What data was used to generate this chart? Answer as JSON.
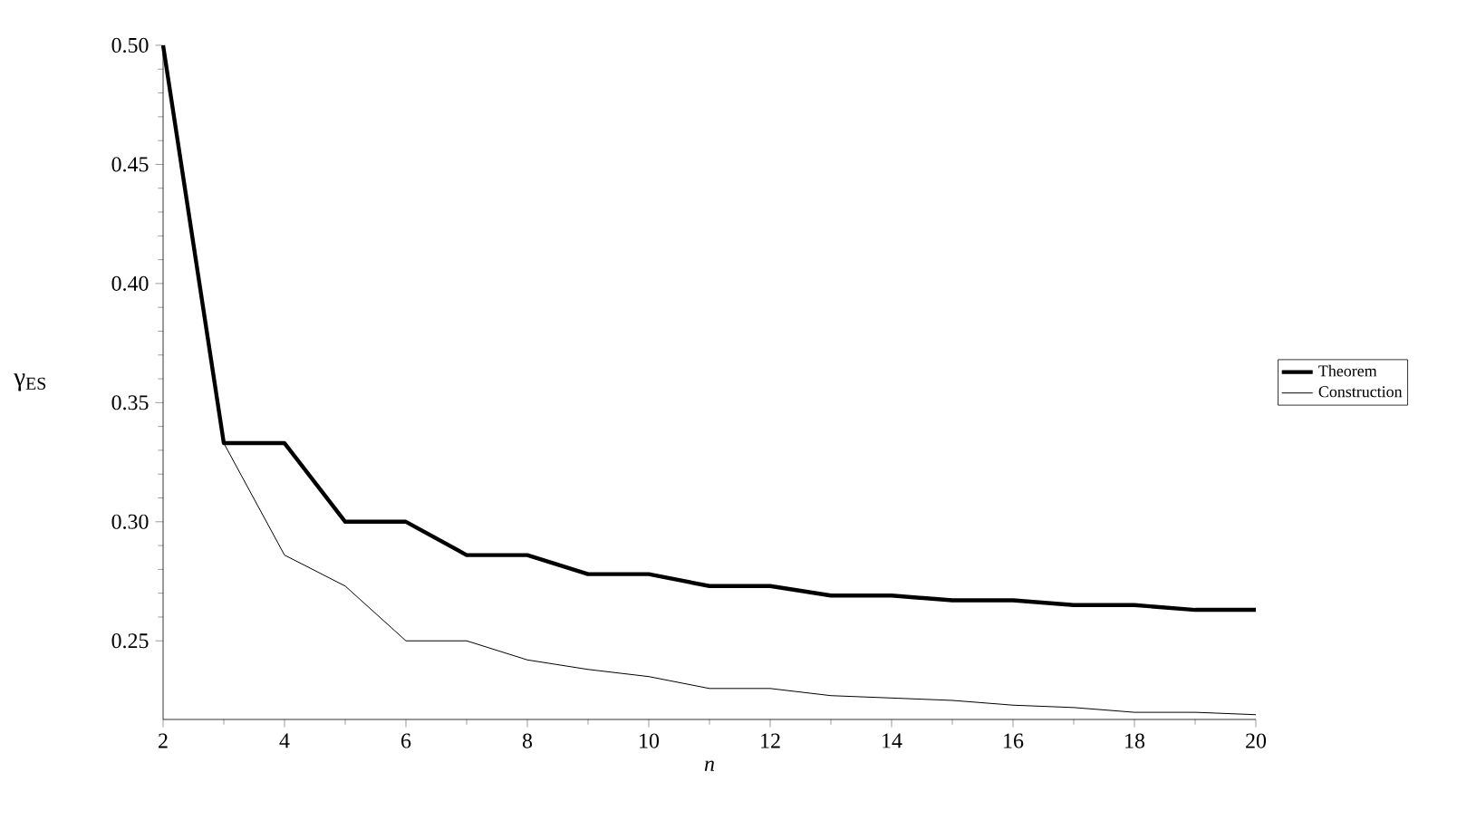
{
  "chart_data": {
    "type": "line",
    "xlabel": "n",
    "ylabel": "γ$_{ES}$",
    "x": [
      2,
      3,
      4,
      5,
      6,
      7,
      8,
      9,
      10,
      11,
      12,
      13,
      14,
      15,
      16,
      17,
      18,
      19,
      20
    ],
    "series": [
      {
        "name": "Theorem",
        "color": "#000000",
        "values": [
          0.5,
          0.333,
          0.333,
          0.3,
          0.3,
          0.286,
          0.286,
          0.278,
          0.278,
          0.273,
          0.273,
          0.269,
          0.269,
          0.267,
          0.267,
          0.265,
          0.265,
          0.263,
          0.263
        ]
      },
      {
        "name": "Construction",
        "color": "#000000",
        "values": [
          0.5,
          0.333,
          0.286,
          0.273,
          0.25,
          0.25,
          0.242,
          0.238,
          0.235,
          0.23,
          0.23,
          0.227,
          0.226,
          0.225,
          0.223,
          0.222,
          0.22,
          0.22,
          0.219
        ]
      }
    ],
    "xlim": [
      2,
      20
    ],
    "xticks": [
      2,
      4,
      6,
      8,
      10,
      12,
      14,
      16,
      18,
      20
    ],
    "ylim": [
      0.217,
      0.5
    ],
    "yticks": [
      {
        "value": 0.25,
        "label": "0.25"
      },
      {
        "value": 0.3,
        "label": "0.30"
      },
      {
        "value": 0.35,
        "label": "0.35"
      },
      {
        "value": 0.4,
        "label": "0.40"
      },
      {
        "value": 0.45,
        "label": "0.45"
      },
      {
        "value": 0.5,
        "label": "0.50"
      }
    ],
    "grid": false,
    "legend": "right",
    "marker": "none",
    "line_style": "solid"
  }
}
